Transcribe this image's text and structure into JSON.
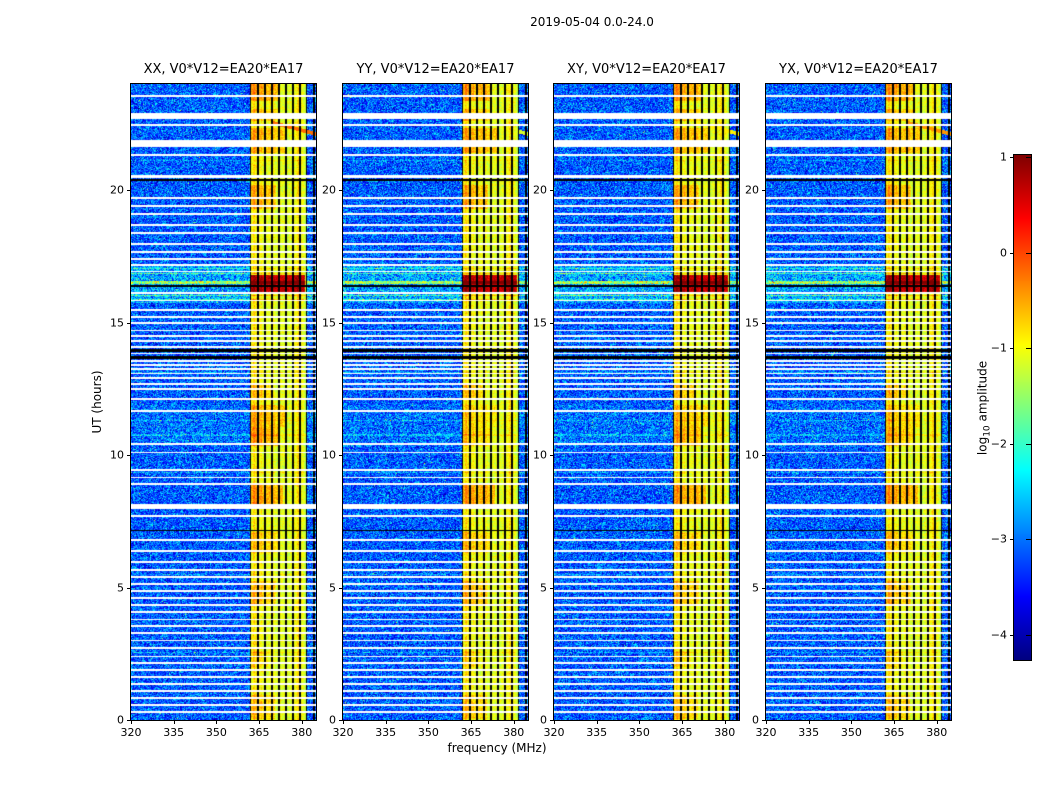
{
  "figure": {
    "title": "2019-05-04 0.0-24.0",
    "xlabel": "frequency (MHz)",
    "ylabel": "UT (hours)",
    "colorbar_label": {
      "pre": "log",
      "sub": "10",
      "post": " amplitude"
    }
  },
  "chart_data": {
    "type": "heatmap",
    "title": "2019-05-04 0.0-24.0",
    "xlabel": "frequency (MHz)",
    "ylabel": "UT (hours)",
    "panels": [
      {
        "label": "XX, V0*V12=EA20*EA17",
        "seed": 11,
        "blob_gain": 1.0,
        "diag_gain": 1.0
      },
      {
        "label": "YY, V0*V12=EA20*EA17",
        "seed": 22,
        "blob_gain": 0.55,
        "diag_gain": 0.3
      },
      {
        "label": "XY, V0*V12=EA20*EA17",
        "seed": 33,
        "blob_gain": 0.8,
        "diag_gain": 0.5
      },
      {
        "label": "YX, V0*V12=EA20*EA17",
        "seed": 44,
        "blob_gain": 0.65,
        "diag_gain": 0.85
      }
    ],
    "x_axis": {
      "label": "frequency (MHz)",
      "range": [
        320,
        385
      ],
      "ticks": [
        320,
        335,
        350,
        365,
        380
      ]
    },
    "y_axis": {
      "label": "UT (hours)",
      "range": [
        0,
        24
      ],
      "ticks": [
        0,
        5,
        10,
        15,
        20
      ]
    },
    "colorbar": {
      "label": "log10 amplitude",
      "colormap": "jet",
      "range": [
        -4.26,
        1.02
      ],
      "ticks": [
        1,
        0,
        -1,
        -2,
        -3,
        -4
      ]
    },
    "background": {
      "noise_mean": -3.15,
      "noise_spread": 0.85
    },
    "rfi_band": {
      "f_start": 361.8,
      "f_end": 382.0,
      "profile": [
        [
          361.8,
          -1.6
        ],
        [
          362.3,
          -1.0
        ],
        [
          364,
          -0.92
        ],
        [
          365.5,
          -1.02
        ],
        [
          367,
          -1.15
        ],
        [
          369,
          -1.05
        ],
        [
          371,
          -1.18
        ],
        [
          373,
          -1.08
        ],
        [
          375,
          -1.18
        ],
        [
          377,
          -1.03
        ],
        [
          379,
          -0.95
        ],
        [
          380.5,
          -1.05
        ],
        [
          381.3,
          -1.3
        ],
        [
          382,
          -1.9
        ]
      ],
      "bright_columns": [
        [
          363.1,
          0.35,
          0.22
        ],
        [
          365.9,
          0.3,
          0.15
        ],
        [
          370.2,
          0.3,
          0.12
        ],
        [
          374.3,
          0.3,
          0.12
        ],
        [
          378.6,
          0.35,
          0.18
        ]
      ]
    },
    "dead_channels": [
      362.0,
      364.6,
      367.1,
      369.5,
      372.0,
      374.4,
      376.9,
      379.4,
      381.7,
      384.3
    ],
    "events": [
      {
        "t0": 0.05,
        "t1": 0.95,
        "f0": 362,
        "f1": 370.5,
        "amp": 0.3
      },
      {
        "t0": 2.0,
        "t1": 2.6,
        "f0": 362,
        "f1": 368,
        "amp": 0.2
      },
      {
        "t0": 4.3,
        "t1": 5.25,
        "f0": 362,
        "f1": 371,
        "amp": 0.35
      },
      {
        "t0": 6.3,
        "t1": 7.1,
        "f0": 362,
        "f1": 372,
        "amp": 0.3
      },
      {
        "t0": 8.15,
        "t1": 8.9,
        "f0": 362,
        "f1": 373.5,
        "amp": 0.5
      },
      {
        "t0": 10.35,
        "t1": 11.05,
        "f0": 362,
        "f1": 372,
        "amp": 0.5,
        "g": "blob"
      },
      {
        "t0": 11.05,
        "t1": 11.9,
        "f0": 362,
        "f1": 374,
        "amp": 0.4,
        "g": "blob"
      },
      {
        "t0": 12.15,
        "t1": 12.65,
        "f0": 362,
        "f1": 369.5,
        "amp": 0.3
      },
      {
        "t0": 16.15,
        "t1": 16.78,
        "f0": 361.8,
        "f1": 381.2,
        "amp": 1.75
      },
      {
        "t0": 19.3,
        "t1": 20.2,
        "f0": 362,
        "f1": 371,
        "amp": 0.42
      },
      {
        "t0": 21.4,
        "t1": 22.35,
        "f0": 362,
        "f1": 374,
        "amp": 0.42
      },
      {
        "t0": 22.6,
        "t1": 23.05,
        "f0": 362,
        "f1": 372,
        "amp": 0.35
      },
      {
        "t0": 23.35,
        "t1": 24,
        "f0": 362,
        "f1": 372.5,
        "amp": 0.5
      }
    ],
    "h_lines": [
      [
        16.5,
        0.1,
        1.3
      ],
      [
        16.02,
        0.07,
        0.9
      ],
      [
        16.85,
        0.06,
        0.8
      ],
      [
        15.85,
        0.05,
        0.7
      ],
      [
        17.05,
        0.05,
        0.6
      ],
      [
        2.55,
        0.05,
        0.45
      ],
      [
        5.5,
        0.05,
        0.4
      ],
      [
        9.35,
        0.05,
        0.45
      ],
      [
        13.1,
        0.04,
        0.45
      ],
      [
        18.4,
        0.04,
        0.4
      ],
      [
        21.1,
        0.04,
        0.35
      ],
      [
        10.75,
        0.05,
        0.4
      ],
      [
        11.3,
        0.04,
        0.35
      ]
    ],
    "elevated_regions": [
      {
        "t0": 15.75,
        "t1": 17.15,
        "add": 0.4
      },
      {
        "t0": 10.35,
        "t1": 11.9,
        "add": 0.12
      }
    ],
    "flagged_rows": [
      [
        23.55,
        0.08
      ],
      [
        22.8,
        0.22
      ],
      [
        22.45,
        0.08
      ],
      [
        21.75,
        0.25
      ],
      [
        21.33,
        0.08
      ],
      [
        20.5,
        0.1
      ],
      [
        19.7,
        0.08
      ],
      [
        19.4,
        0.08
      ],
      [
        19.1,
        0.08
      ],
      [
        18.68,
        0.08
      ],
      [
        18.38,
        0.08
      ],
      [
        17.95,
        0.08
      ],
      [
        17.65,
        0.08
      ],
      [
        17.4,
        0.08
      ],
      [
        17.17,
        0.06
      ],
      [
        16.92,
        0.06
      ],
      [
        16.12,
        0.06
      ],
      [
        15.83,
        0.06
      ],
      [
        15.47,
        0.06
      ],
      [
        15.2,
        0.06
      ],
      [
        14.98,
        0.06
      ],
      [
        14.7,
        0.06
      ],
      [
        14.49,
        0.06
      ],
      [
        14.3,
        0.06
      ],
      [
        14.08,
        0.05
      ],
      [
        13.82,
        0.05
      ],
      [
        13.55,
        0.05
      ],
      [
        13.4,
        0.06
      ],
      [
        13.25,
        0.06
      ],
      [
        13.08,
        0.06
      ],
      [
        12.9,
        0.08
      ],
      [
        12.68,
        0.06
      ],
      [
        12.5,
        0.06
      ],
      [
        12.1,
        0.08
      ],
      [
        11.65,
        0.08
      ],
      [
        10.4,
        0.08
      ],
      [
        10.1,
        0.06
      ],
      [
        9.43,
        0.08
      ],
      [
        9.15,
        0.06
      ],
      [
        8.9,
        0.06
      ],
      [
        8.05,
        0.18
      ],
      [
        7.7,
        0.08
      ],
      [
        6.8,
        0.08
      ],
      [
        6.38,
        0.06
      ],
      [
        5.95,
        0.08
      ],
      [
        5.65,
        0.06
      ],
      [
        5.4,
        0.06
      ],
      [
        5.13,
        0.06
      ],
      [
        4.87,
        0.06
      ],
      [
        4.6,
        0.06
      ],
      [
        4.34,
        0.06
      ],
      [
        4.08,
        0.06
      ],
      [
        3.8,
        0.06
      ],
      [
        3.55,
        0.06
      ],
      [
        3.28,
        0.06
      ],
      [
        3.0,
        0.06
      ],
      [
        2.72,
        0.08
      ],
      [
        2.4,
        0.06
      ],
      [
        2.15,
        0.06
      ],
      [
        1.89,
        0.06
      ],
      [
        1.62,
        0.06
      ],
      [
        1.36,
        0.06
      ],
      [
        1.1,
        0.06
      ],
      [
        0.83,
        0.06
      ],
      [
        0.57,
        0.06
      ],
      [
        0.3,
        0.06
      ]
    ],
    "black_rows": [
      [
        13.95,
        0.12
      ],
      [
        13.68,
        0.1
      ],
      [
        16.38,
        0.05
      ],
      [
        20.38,
        0.05
      ],
      [
        7.15,
        0.04
      ]
    ],
    "diagonal_streak": {
      "f0": 369.5,
      "t_at_f0": 22.55,
      "slope": -0.028,
      "half_width": 0.07,
      "level": -0.2,
      "t_min": 21.95,
      "t_max": 22.75
    }
  }
}
